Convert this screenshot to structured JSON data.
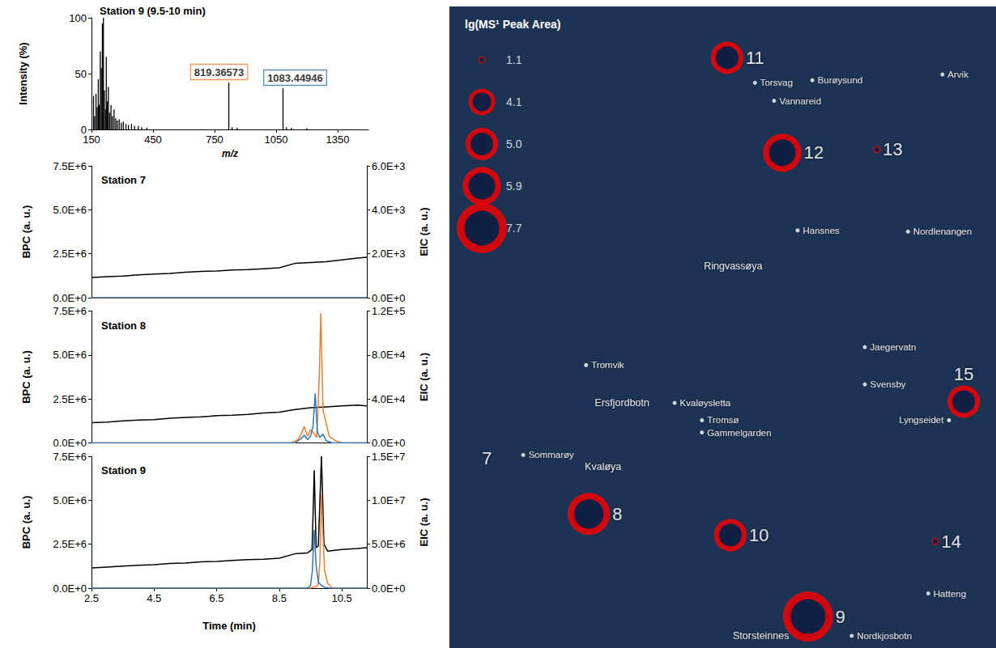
{
  "chart_data": [
    {
      "type": "bar",
      "title": "Station 9 (9.5-10 min)",
      "xlabel": "m/z",
      "ylabel": "Intensity (%)",
      "x": [
        160,
        165,
        172,
        178,
        183,
        188,
        193,
        198,
        203,
        208,
        213,
        218,
        222,
        227,
        232,
        238,
        245,
        252,
        260,
        268,
        276,
        285,
        295,
        305,
        318,
        330,
        345,
        360,
        378,
        395,
        420,
        819.36573,
        835,
        860,
        1083.44946,
        1100,
        1125,
        1200
      ],
      "values": [
        30,
        12,
        32,
        20,
        45,
        22,
        70,
        55,
        95,
        100,
        35,
        18,
        65,
        25,
        38,
        15,
        22,
        12,
        18,
        10,
        8,
        9,
        6,
        7,
        5,
        4,
        5,
        3,
        3,
        2,
        1.5,
        42,
        2,
        1.5,
        37,
        2,
        1.5,
        1
      ],
      "color": "#000000",
      "xlim": [
        150,
        1500
      ],
      "xticks": [
        150,
        450,
        750,
        1050,
        1350
      ],
      "ylim": [
        0,
        100
      ],
      "yticks": [
        0,
        50,
        100
      ],
      "annotations": [
        {
          "text": "819.36573",
          "x": 819.36573,
          "y": 42,
          "color": "#ed7d31"
        },
        {
          "text": "1083.44946",
          "x": 1083.44946,
          "y": 37,
          "color": "#2e75b6"
        }
      ]
    },
    {
      "type": "line",
      "title": "Station 7",
      "ylabel": "BPC (a. u.)",
      "y2label": "EIC (a. u.)",
      "xlim": [
        2.5,
        11.3
      ],
      "xticks": [
        2.5,
        4.5,
        6.5,
        8.5,
        10.5
      ],
      "ylim": [
        0,
        7500000
      ],
      "yticks": [
        {
          "value": 0,
          "label": "0.0E+0"
        },
        {
          "value": 2500000,
          "label": "2.5E+6"
        },
        {
          "value": 5000000,
          "label": "5.0E+6"
        },
        {
          "value": 7500000,
          "label": "7.5E+6"
        }
      ],
      "y2lim": [
        0,
        6000
      ],
      "y2ticks": [
        {
          "value": 0,
          "label": "0.0E+0"
        },
        {
          "value": 2000,
          "label": "2.0E+3"
        },
        {
          "value": 4000,
          "label": "4.0E+3"
        },
        {
          "value": 6000,
          "label": "6.0E+3"
        }
      ],
      "tick_labels": "y",
      "series": [
        {
          "color": "#000000",
          "x": [
            2.5,
            3,
            3.5,
            4,
            4.5,
            5,
            5.5,
            6,
            6.5,
            7,
            7.5,
            8,
            8.5,
            9,
            9.5,
            10,
            10.5,
            11,
            11.3
          ],
          "values": [
            1150000,
            1200000,
            1230000,
            1300000,
            1350000,
            1380000,
            1450000,
            1500000,
            1520000,
            1580000,
            1600000,
            1650000,
            1700000,
            1950000,
            2000000,
            2050000,
            2150000,
            2250000,
            2300000
          ]
        },
        {
          "name": "819.36573",
          "color": "#ed7d31",
          "axis": "y2",
          "x": [
            2.5,
            11.3
          ],
          "values": [
            0,
            0
          ]
        },
        {
          "name": "1083.44946",
          "color": "#2e75b6",
          "axis": "y2",
          "x": [
            2.5,
            11.3
          ],
          "values": [
            0,
            0
          ]
        }
      ]
    },
    {
      "type": "line",
      "title": "Station 8",
      "ylabel": "BPC (a. u.)",
      "y2label": "EIC (a. u.)",
      "xlim": [
        2.5,
        11.3
      ],
      "xticks": [
        2.5,
        4.5,
        6.5,
        8.5,
        10.5
      ],
      "ylim": [
        0,
        7500000
      ],
      "yticks": [
        {
          "value": 0,
          "label": "0.0E+0"
        },
        {
          "value": 2500000,
          "label": "2.5E+6"
        },
        {
          "value": 5000000,
          "label": "5.0E+6"
        },
        {
          "value": 7500000,
          "label": "7.5E+6"
        }
      ],
      "y2lim": [
        0,
        120000
      ],
      "y2ticks": [
        {
          "value": 0,
          "label": "0.0E+0"
        },
        {
          "value": 40000,
          "label": "4.0E+4"
        },
        {
          "value": 80000,
          "label": "8.0E+4"
        },
        {
          "value": 120000,
          "label": "1.2E+5"
        }
      ],
      "tick_labels": "y",
      "series": [
        {
          "color": "#000000",
          "x": [
            2.5,
            3,
            3.5,
            4,
            4.5,
            5,
            5.5,
            6,
            6.5,
            7,
            7.5,
            8,
            8.5,
            9,
            9.5,
            10,
            10.5,
            11,
            11.3
          ],
          "values": [
            1150000,
            1180000,
            1250000,
            1300000,
            1320000,
            1400000,
            1450000,
            1480000,
            1550000,
            1580000,
            1620000,
            1700000,
            1750000,
            1900000,
            2000000,
            2050000,
            2100000,
            2150000,
            2100000
          ]
        },
        {
          "name": "819.36573",
          "color": "#ed7d31",
          "axis": "y2",
          "x": [
            2.5,
            8.9,
            9.1,
            9.2,
            9.3,
            9.4,
            9.5,
            9.6,
            9.7,
            9.78,
            9.83,
            9.9,
            10.0,
            10.1,
            10.3,
            10.5,
            11.3
          ],
          "values": [
            0,
            0,
            3000,
            8000,
            15000,
            6000,
            12000,
            9000,
            5000,
            60000,
            118000,
            30000,
            18000,
            6000,
            2000,
            0,
            0
          ]
        },
        {
          "name": "1083.44946",
          "color": "#2e75b6",
          "axis": "y2",
          "x": [
            2.5,
            9.0,
            9.2,
            9.3,
            9.4,
            9.5,
            9.58,
            9.65,
            9.72,
            9.8,
            9.9,
            10.0,
            10.2,
            11.3
          ],
          "values": [
            0,
            0,
            4000,
            7000,
            3000,
            6000,
            15000,
            45000,
            10000,
            5000,
            8000,
            2000,
            0,
            0
          ]
        }
      ]
    },
    {
      "type": "line",
      "title": "Station 9",
      "xlabel": "Time (min)",
      "ylabel": "BPC (a. u.)",
      "y2label": "EIC (a. u.)",
      "xlim": [
        2.5,
        11.3
      ],
      "xticks": [
        2.5,
        4.5,
        6.5,
        8.5,
        10.5
      ],
      "ylim": [
        0,
        7500000
      ],
      "yticks": [
        {
          "value": 0,
          "label": "0.0E+0"
        },
        {
          "value": 2500000,
          "label": "2.5E+6"
        },
        {
          "value": 5000000,
          "label": "5.0E+6"
        },
        {
          "value": 7500000,
          "label": "7.5E+6"
        }
      ],
      "y2lim": [
        0,
        15000000
      ],
      "y2ticks": [
        {
          "value": 0,
          "label": "0.0E+0"
        },
        {
          "value": 5000000,
          "label": "5.0E+6"
        },
        {
          "value": 10000000,
          "label": "1.0E+7"
        },
        {
          "value": 15000000,
          "label": "1.5E+7"
        }
      ],
      "series": [
        {
          "color": "#000000",
          "x": [
            2.5,
            3,
            3.5,
            4,
            4.5,
            5,
            5.5,
            6,
            6.5,
            7,
            7.5,
            8,
            8.5,
            9,
            9.4,
            9.55,
            9.62,
            9.68,
            9.75,
            9.85,
            9.93,
            10.05,
            10.5,
            11,
            11.3
          ],
          "values": [
            1150000,
            1200000,
            1250000,
            1300000,
            1330000,
            1400000,
            1430000,
            1500000,
            1520000,
            1580000,
            1620000,
            1650000,
            1700000,
            1950000,
            2000000,
            2200000,
            6700000,
            2300000,
            2400000,
            7500000,
            2500000,
            2100000,
            2200000,
            2250000,
            2300000
          ]
        },
        {
          "name": "819.36573",
          "color": "#ed7d31",
          "axis": "y2",
          "x": [
            2.5,
            9.5,
            9.7,
            9.75,
            9.8,
            9.85,
            9.9,
            9.95,
            10.05,
            10.2,
            11.3
          ],
          "values": [
            0,
            0,
            200000,
            500000,
            3000000,
            10700000,
            6000000,
            2000000,
            500000,
            0,
            0
          ]
        },
        {
          "name": "1083.44946",
          "color": "#2e75b6",
          "axis": "y2",
          "x": [
            2.5,
            9.4,
            9.5,
            9.56,
            9.62,
            9.68,
            9.75,
            9.85,
            9.95,
            10.1,
            11.3
          ],
          "values": [
            0,
            0,
            300000,
            2000000,
            6600000,
            2500000,
            700000,
            300000,
            100000,
            0,
            0
          ]
        }
      ]
    },
    {
      "type": "map",
      "title": "lg(MS¹ Peak Area)",
      "xlim": [
        0,
        100
      ],
      "ylim": [
        0,
        100
      ],
      "tick_labels": false,
      "color": "#ff0000",
      "size_legend": [
        1.1,
        4.1,
        {
          "value": 5,
          "label": "5.0"
        },
        5.9,
        7.7
      ],
      "stations": [
        {
          "label": "11",
          "x": 50.8,
          "y": 92.0,
          "value": 5.0
        },
        {
          "label": "12",
          "x": 60.9,
          "y": 77.2,
          "value": 5.9
        },
        {
          "label": "13",
          "x": 78.2,
          "y": 77.7,
          "value": 1.1
        },
        {
          "label": "15",
          "x": 94.1,
          "y": 38.4,
          "value": 5.0
        },
        {
          "label": "7",
          "x": 5.5,
          "y": 29.6,
          "value": null
        },
        {
          "label": "8",
          "x": 25.5,
          "y": 20.9,
          "value": 6.5
        },
        {
          "label": "10",
          "x": 51.4,
          "y": 17.6,
          "value": 5.0
        },
        {
          "label": "9",
          "x": 65.6,
          "y": 4.9,
          "value": 7.7
        },
        {
          "label": "14",
          "x": 88.9,
          "y": 16.6,
          "value": 1.1
        }
      ],
      "places": [
        {
          "name": "Torsvag",
          "x": 55.9,
          "y": 88.1,
          "marker": "dot"
        },
        {
          "name": "Burøysund",
          "x": 66.4,
          "y": 88.5,
          "marker": "dot"
        },
        {
          "name": "Vannareid",
          "x": 59.4,
          "y": 85.3,
          "marker": "dot"
        },
        {
          "name": "Arvik",
          "x": 90.2,
          "y": 89.4,
          "marker": "dot"
        },
        {
          "name": "Hansnes",
          "x": 63.7,
          "y": 65.1,
          "marker": "dot"
        },
        {
          "name": "Nordlenangen",
          "x": 83.9,
          "y": 64.9,
          "marker": "dot"
        },
        {
          "name": "Ringvassøya",
          "x": 51.9,
          "y": 59.5,
          "marker": "none"
        },
        {
          "name": "Jaegervatn",
          "x": 76.0,
          "y": 46.9,
          "marker": "dot"
        },
        {
          "name": "Svensby",
          "x": 76.0,
          "y": 41.1,
          "marker": "dot"
        },
        {
          "name": "Lyngseidet",
          "x": 91.4,
          "y": 35.5,
          "marker": "dot"
        },
        {
          "name": "Tromvik",
          "x": 25.0,
          "y": 44.1,
          "marker": "dot"
        },
        {
          "name": "Ersfjordbotn",
          "x": 31.6,
          "y": 38.2,
          "marker": "none"
        },
        {
          "name": "Kvaløysletta",
          "x": 41.2,
          "y": 38.2,
          "marker": "dot"
        },
        {
          "name": "Tromsø",
          "x": 46.2,
          "y": 35.5,
          "marker": "dot"
        },
        {
          "name": "Gammelgarden",
          "x": 46.2,
          "y": 33.6,
          "marker": "dot"
        },
        {
          "name": "Kvaløya",
          "x": 28.1,
          "y": 28.2,
          "marker": "none"
        },
        {
          "name": "Sommarøy",
          "x": 13.5,
          "y": 30.1,
          "marker": "dot"
        },
        {
          "name": "Hatteng",
          "x": 87.6,
          "y": 8.5,
          "marker": "dot"
        },
        {
          "name": "Storsteinnes",
          "x": 57.0,
          "y": 1.9,
          "marker": "none"
        },
        {
          "name": "Nordkjosbotn",
          "x": 73.6,
          "y": 1.9,
          "marker": "dot"
        }
      ]
    }
  ]
}
